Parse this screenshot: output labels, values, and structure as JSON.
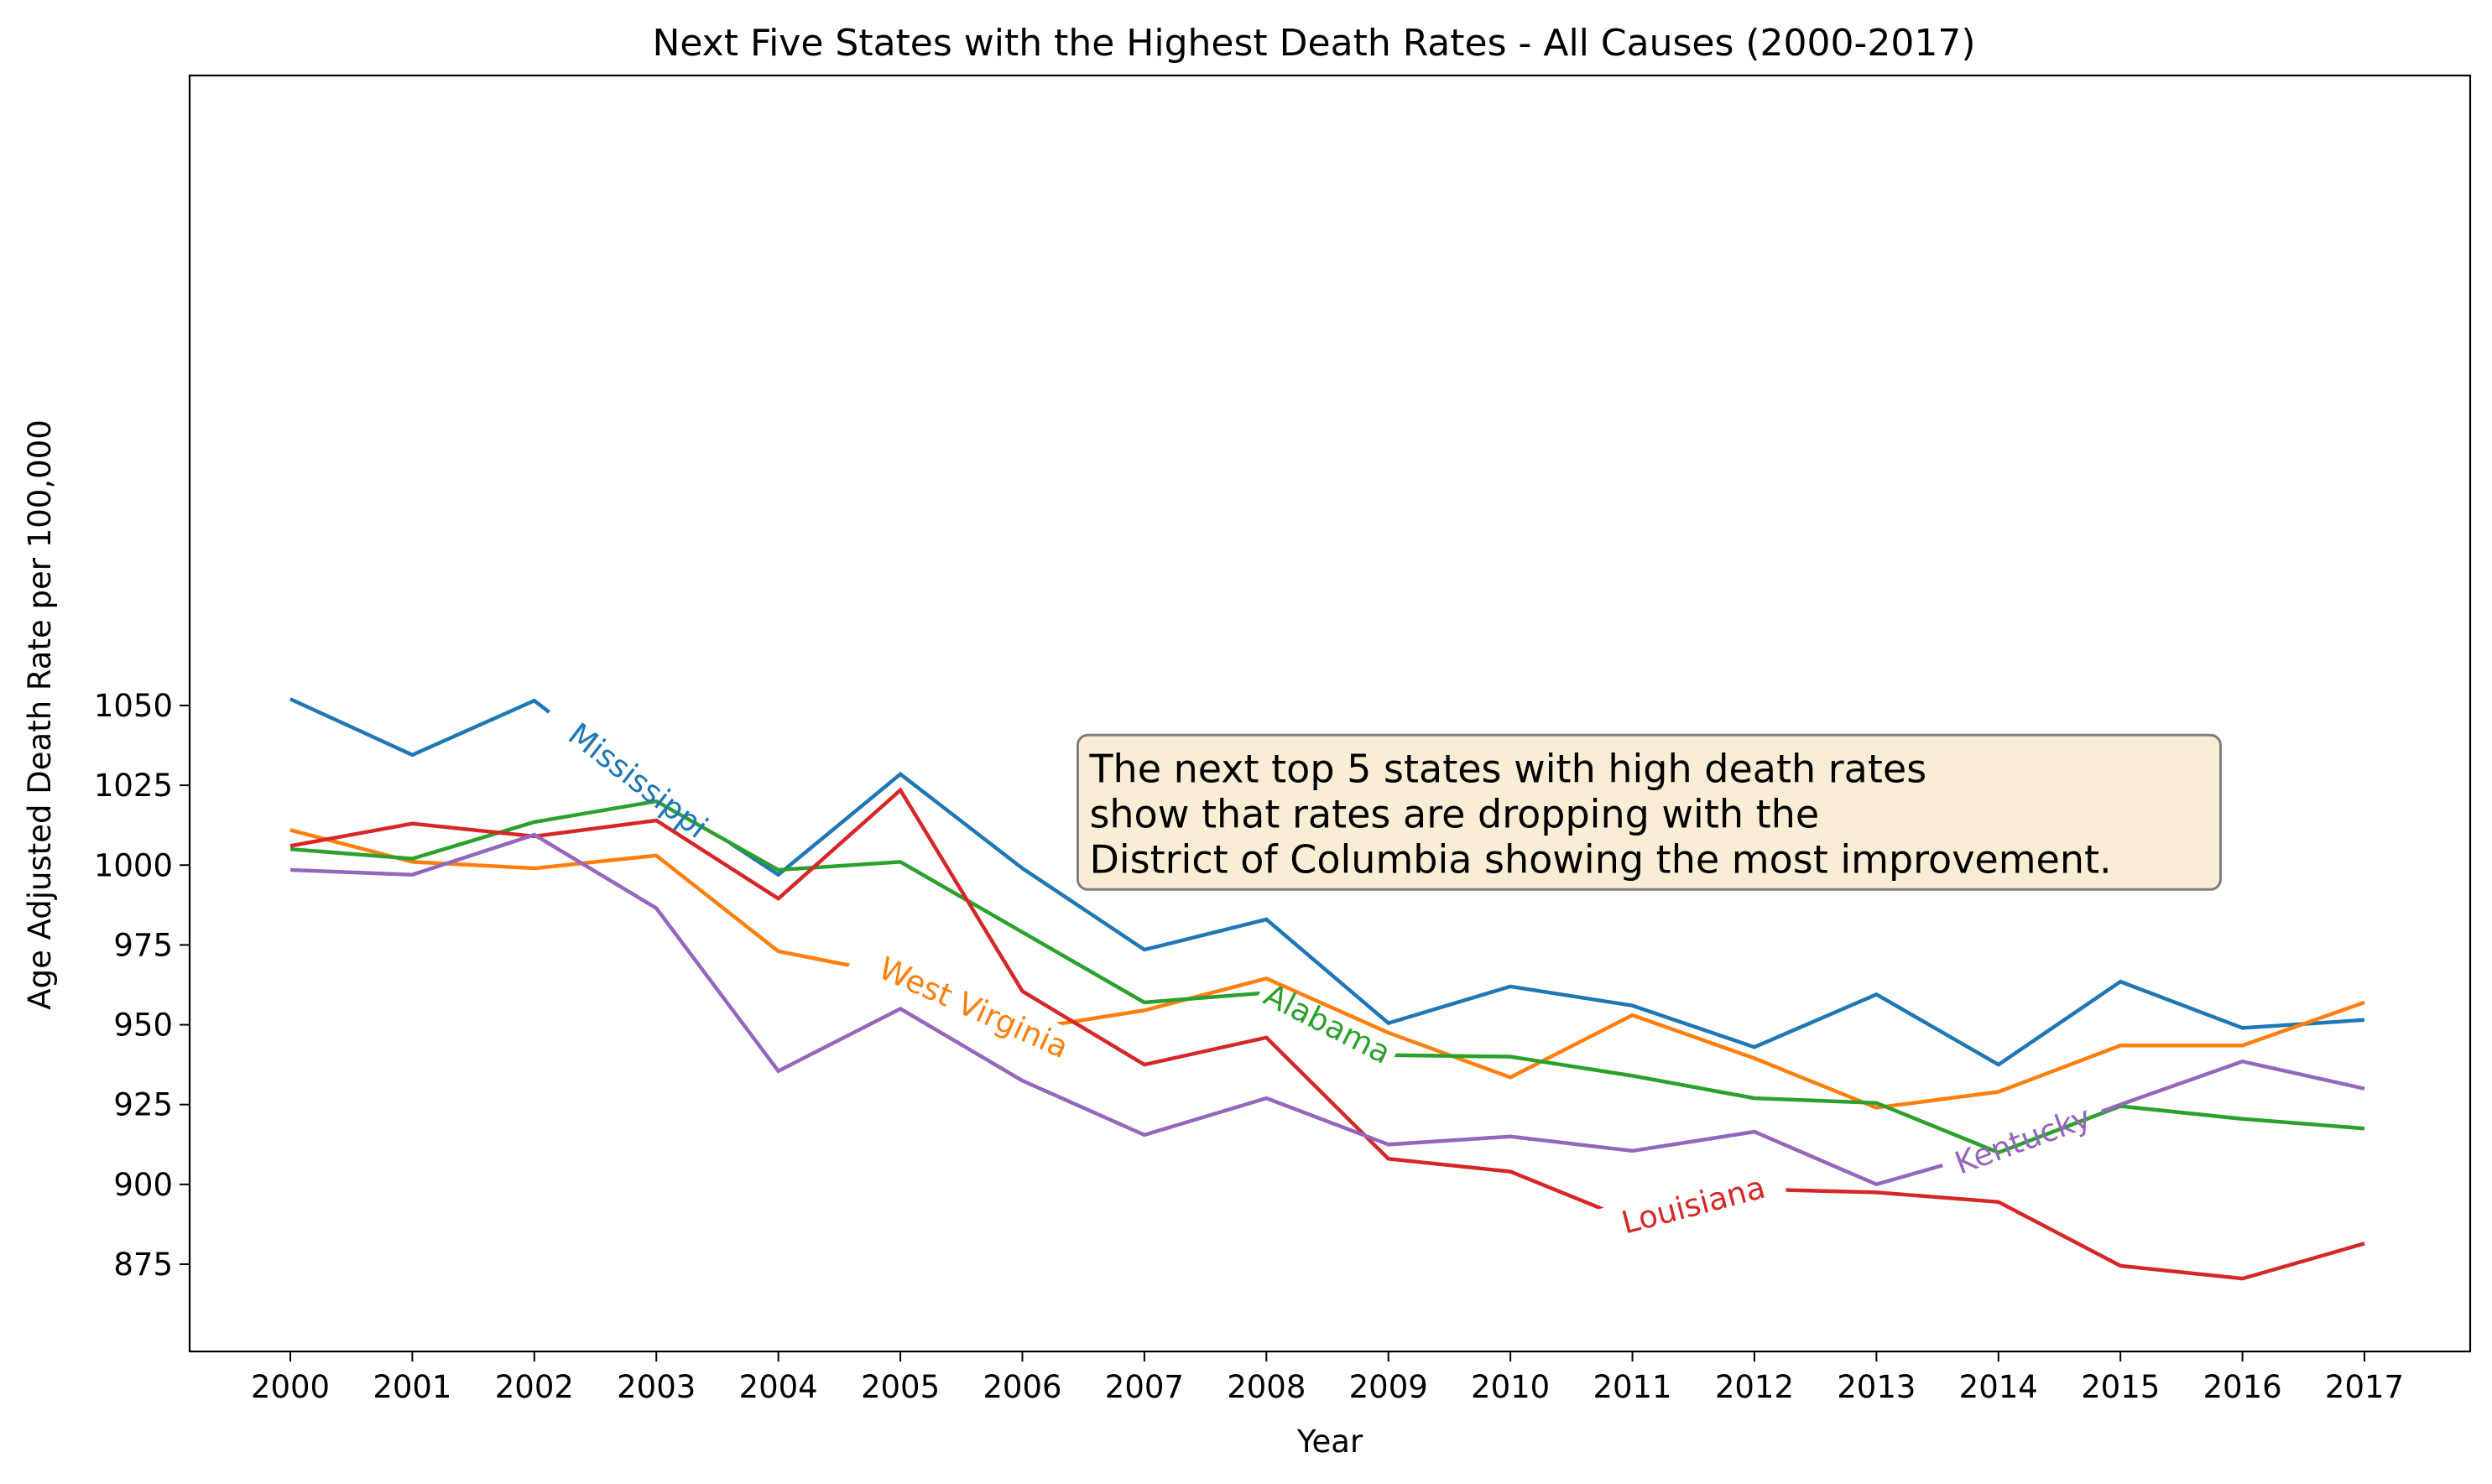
{
  "chart_data": {
    "type": "line",
    "title": "Next Five States with the Highest Death Rates - All Causes (2000-2017)",
    "xlabel": "Year",
    "ylabel": "Age Adjusted Death Rate per 100,000",
    "x": [
      2000,
      2001,
      2002,
      2003,
      2004,
      2005,
      2006,
      2007,
      2008,
      2009,
      2010,
      2011,
      2012,
      2013,
      2014,
      2015,
      2016,
      2017
    ],
    "x_tick_labels": [
      "2000",
      "2001",
      "2002",
      "2003",
      "2004",
      "2005",
      "2006",
      "2007",
      "2008",
      "2009",
      "2010",
      "2011",
      "2012",
      "2013",
      "2014",
      "2015",
      "2016",
      "2017"
    ],
    "ylim": [
      861,
      1062
    ],
    "y_ticks": [
      875,
      900,
      925,
      950,
      975,
      1000,
      1025,
      1050
    ],
    "grid": false,
    "series": [
      {
        "name": "Mississippi",
        "color": "#1f77b4",
        "values": [
          1052,
          1034.5,
          1051.5,
          1022,
          997,
          1028.5,
          999,
          973.5,
          983,
          950.5,
          962,
          956,
          943,
          959.5,
          937.5,
          963.5,
          949,
          951.5
        ],
        "label_at": 2002.85
      },
      {
        "name": "West Virginia",
        "color": "#ff7f0e",
        "values": [
          1011,
          1001,
          999,
          1003,
          973,
          965.5,
          948.5,
          954.5,
          964.5,
          947.5,
          933.5,
          953,
          939.5,
          924,
          929,
          943.5,
          943.5,
          957
        ],
        "label_at": 2005.6
      },
      {
        "name": "Alabama",
        "color": "#2ca02c",
        "values": [
          1005,
          1002,
          1013.5,
          1020,
          998.5,
          1001,
          979,
          957,
          960,
          940.5,
          940,
          934,
          927,
          925.5,
          910,
          924.5,
          920.5,
          917.5
        ],
        "label_at": 2008.5
      },
      {
        "name": "Louisiana",
        "color": "#d62728",
        "values": [
          1006,
          1013,
          1009,
          1014,
          989.5,
          1023.5,
          960.5,
          937.5,
          946,
          908,
          904,
          888.5,
          898.5,
          897.5,
          894.5,
          874.5,
          870.5,
          881.5
        ],
        "label_at": 2011.5
      },
      {
        "name": "Kentucky",
        "color": "#9467bd",
        "values": [
          998.5,
          997,
          1009.5,
          986.5,
          935.5,
          955,
          932.5,
          915.5,
          927,
          912.5,
          915,
          910.5,
          916.5,
          900,
          911,
          925,
          938.5,
          930
        ],
        "label_at": 2014.2
      }
    ],
    "annotation": {
      "lines": [
        "The next top 5 states with high death rates",
        "show that rates are dropping with the",
        "District of Columbia showing the most improvement."
      ],
      "anchor_x": 2006.55,
      "anchor_y": 1026,
      "box_fill": "#f5deb3",
      "box_stroke": "#7f7f7f"
    }
  }
}
